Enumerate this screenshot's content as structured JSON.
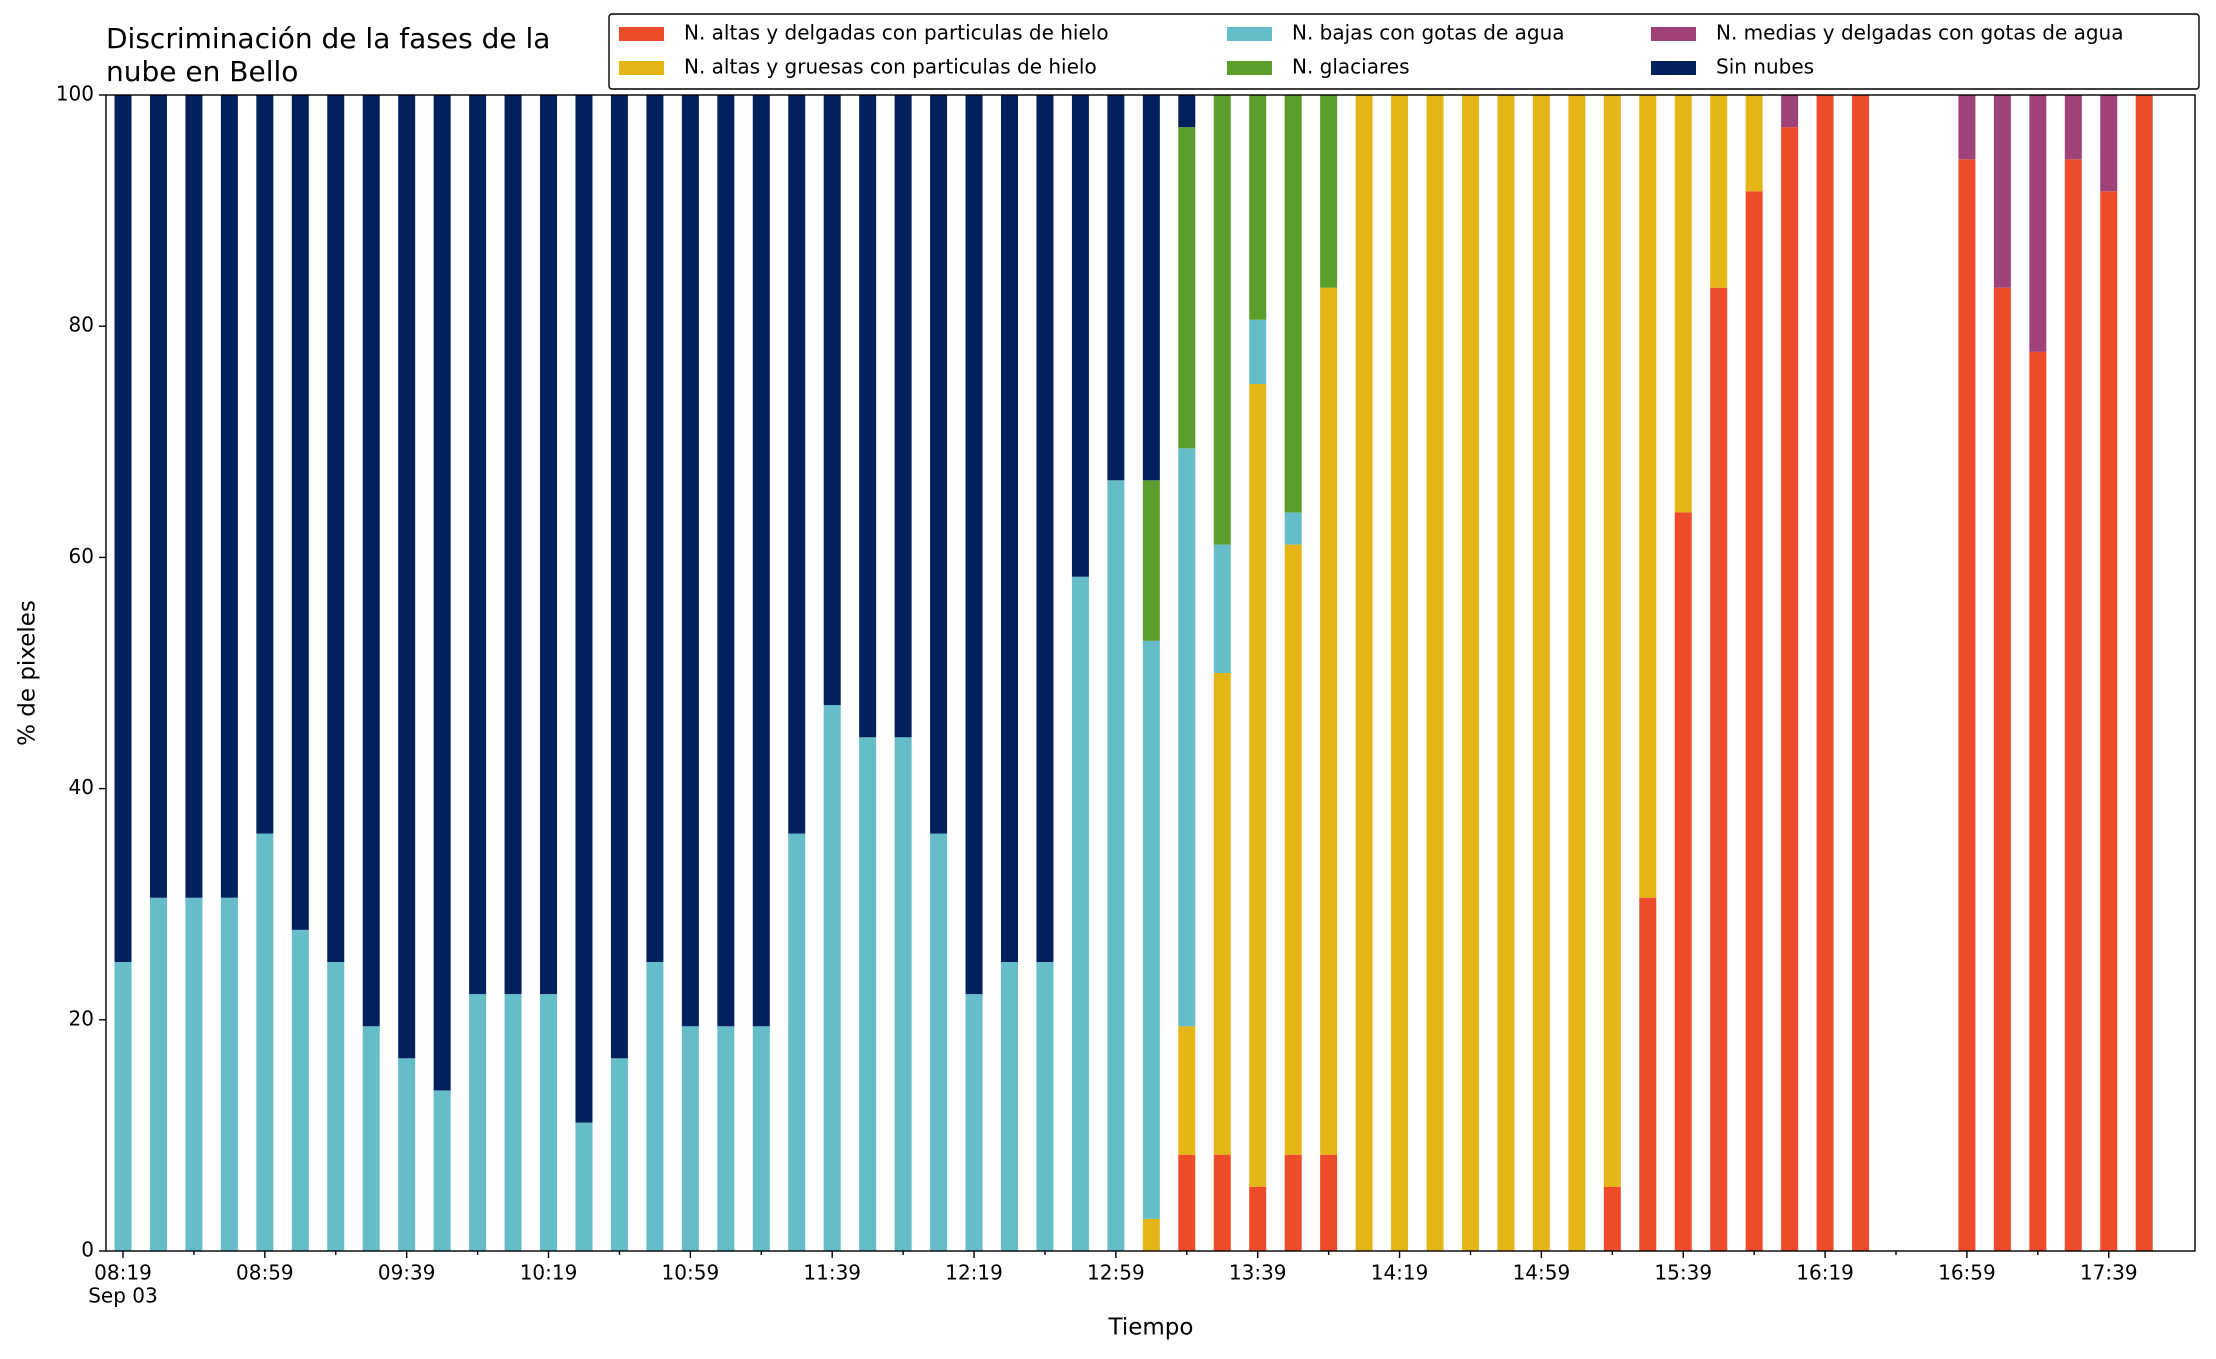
{
  "chart_data": {
    "type": "stacked_bar",
    "title": [
      "Discriminación de la fases de la",
      "nube en Bello"
    ],
    "xlabel": "Tiempo",
    "ylabel": "% de pixeles",
    "x_date_label": "Sep 03",
    "categories": [
      "08:19",
      null,
      null,
      null,
      "08:59",
      null,
      null,
      null,
      "09:39",
      null,
      null,
      null,
      "10:19",
      null,
      null,
      null,
      "10:59",
      null,
      null,
      null,
      "11:39",
      null,
      null,
      null,
      "12:19",
      null,
      null,
      null,
      "12:59",
      null,
      null,
      null,
      "13:39",
      null,
      null,
      null,
      "14:19",
      null,
      null,
      null,
      "14:59",
      null,
      null,
      null,
      "15:39",
      null,
      null,
      null,
      "16:19",
      null,
      null,
      null,
      "16:59",
      null,
      null,
      null,
      "17:39",
      null
    ],
    "ylim": [
      0,
      100
    ],
    "yticks": [
      0,
      20,
      40,
      60,
      80,
      100
    ],
    "series": [
      {
        "name": "N. altas y delgadas con particulas de hielo",
        "color": "#ee4b2b",
        "values": [
          0,
          0,
          0,
          0,
          0,
          0,
          0,
          0,
          0,
          0,
          0,
          0,
          0,
          0,
          0,
          0,
          0,
          0,
          0,
          0,
          0,
          0,
          0,
          0,
          0,
          0,
          0,
          0,
          0,
          0,
          8.33,
          8.33,
          5.56,
          8.33,
          8.33,
          0,
          0,
          0,
          0,
          0,
          0,
          0,
          5.56,
          30.56,
          63.89,
          83.33,
          91.67,
          97.22,
          100,
          100,
          null,
          null,
          94.44,
          83.33,
          77.78,
          94.44,
          91.67,
          100
        ]
      },
      {
        "name": "N. altas y gruesas con particulas de hielo",
        "color": "#e5b517",
        "values": [
          0,
          0,
          0,
          0,
          0,
          0,
          0,
          0,
          0,
          0,
          0,
          0,
          0,
          0,
          0,
          0,
          0,
          0,
          0,
          0,
          0,
          0,
          0,
          0,
          0,
          0,
          0,
          0,
          0,
          2.78,
          11.11,
          41.67,
          69.44,
          52.78,
          75,
          100,
          100,
          100,
          100,
          100,
          100,
          100,
          94.44,
          69.44,
          36.11,
          16.67,
          8.33,
          0,
          0,
          0,
          null,
          null,
          0,
          0,
          0,
          0,
          0,
          0
        ]
      },
      {
        "name": "N. bajas con gotas de agua",
        "color": "#65bdc9",
        "values": [
          25,
          30.56,
          30.56,
          30.56,
          36.11,
          27.78,
          25,
          19.44,
          16.67,
          13.89,
          22.22,
          22.22,
          22.22,
          11.11,
          16.67,
          25,
          19.44,
          19.44,
          19.44,
          36.11,
          47.22,
          44.44,
          44.44,
          36.11,
          22.22,
          25,
          25,
          58.33,
          66.67,
          50,
          50,
          11.11,
          5.56,
          2.78,
          0,
          0,
          0,
          0,
          0,
          0,
          0,
          0,
          0,
          0,
          0,
          0,
          0,
          0,
          0,
          0,
          null,
          null,
          0,
          0,
          0,
          0,
          0,
          0
        ]
      },
      {
        "name": "N. glaciares",
        "color": "#5c9e2c",
        "values": [
          0,
          0,
          0,
          0,
          0,
          0,
          0,
          0,
          0,
          0,
          0,
          0,
          0,
          0,
          0,
          0,
          0,
          0,
          0,
          0,
          0,
          0,
          0,
          0,
          0,
          0,
          0,
          0,
          0,
          13.89,
          27.78,
          38.89,
          19.44,
          36.11,
          16.67,
          0,
          0,
          0,
          0,
          0,
          0,
          0,
          0,
          0,
          0,
          0,
          0,
          0,
          0,
          0,
          null,
          null,
          0,
          0,
          0,
          0,
          0,
          0
        ]
      },
      {
        "name": "N. medias y delgadas con gotas de agua",
        "color": "#a0427a",
        "values": [
          0,
          0,
          0,
          0,
          0,
          0,
          0,
          0,
          0,
          0,
          0,
          0,
          0,
          0,
          0,
          0,
          0,
          0,
          0,
          0,
          0,
          0,
          0,
          0,
          0,
          0,
          0,
          0,
          0,
          0,
          0,
          0,
          0,
          0,
          0,
          0,
          0,
          0,
          0,
          0,
          0,
          0,
          0,
          0,
          0,
          0,
          0,
          2.78,
          0,
          0,
          null,
          null,
          5.56,
          16.67,
          22.22,
          5.56,
          8.33,
          0
        ]
      },
      {
        "name": "Sin nubes",
        "color": "#02205e",
        "values": [
          75,
          69.44,
          69.44,
          69.44,
          63.89,
          72.22,
          75,
          80.56,
          83.33,
          86.11,
          77.78,
          77.78,
          77.78,
          88.89,
          83.33,
          75,
          80.56,
          80.56,
          80.56,
          63.89,
          52.78,
          55.56,
          55.56,
          63.89,
          77.78,
          75,
          75,
          41.67,
          33.33,
          33.33,
          2.78,
          0,
          0,
          0,
          0,
          0,
          0,
          0,
          0,
          0,
          0,
          0,
          0,
          0,
          0,
          0,
          0,
          0,
          0,
          0,
          null,
          null,
          0,
          0,
          0,
          0,
          0,
          0
        ]
      }
    ]
  }
}
